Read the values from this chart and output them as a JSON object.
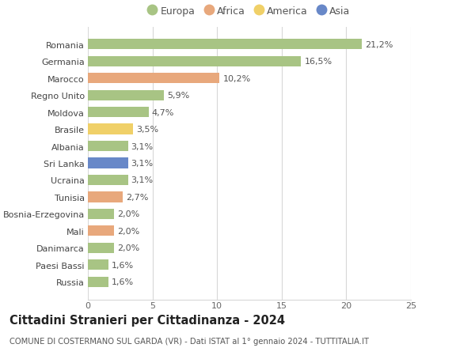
{
  "countries": [
    "Russia",
    "Paesi Bassi",
    "Danimarca",
    "Mali",
    "Bosnia-Erzegovina",
    "Tunisia",
    "Ucraina",
    "Sri Lanka",
    "Albania",
    "Brasile",
    "Moldova",
    "Regno Unito",
    "Marocco",
    "Germania",
    "Romania"
  ],
  "values": [
    1.6,
    1.6,
    2.0,
    2.0,
    2.0,
    2.7,
    3.1,
    3.1,
    3.1,
    3.5,
    4.7,
    5.9,
    10.2,
    16.5,
    21.2
  ],
  "labels": [
    "1,6%",
    "1,6%",
    "2,0%",
    "2,0%",
    "2,0%",
    "2,7%",
    "3,1%",
    "3,1%",
    "3,1%",
    "3,5%",
    "4,7%",
    "5,9%",
    "10,2%",
    "16,5%",
    "21,2%"
  ],
  "continents": [
    "Europa",
    "Europa",
    "Europa",
    "Africa",
    "Europa",
    "Africa",
    "Europa",
    "Asia",
    "Europa",
    "America",
    "Europa",
    "Europa",
    "Africa",
    "Europa",
    "Europa"
  ],
  "continent_colors": {
    "Europa": "#a8c484",
    "Africa": "#e8a87c",
    "America": "#f0d068",
    "Asia": "#6888c8"
  },
  "legend_order": [
    "Europa",
    "Africa",
    "America",
    "Asia"
  ],
  "title": "Cittadini Stranieri per Cittadinanza - 2024",
  "subtitle": "COMUNE DI COSTERMANO SUL GARDA (VR) - Dati ISTAT al 1° gennaio 2024 - TUTTITALIA.IT",
  "xlim": [
    0,
    25
  ],
  "xticks": [
    0,
    5,
    10,
    15,
    20,
    25
  ],
  "background_color": "#ffffff",
  "grid_color": "#d8d8d8",
  "bar_height": 0.62,
  "label_fontsize": 8.0,
  "tick_fontsize": 8.0,
  "title_fontsize": 10.5,
  "subtitle_fontsize": 7.2,
  "legend_fontsize": 9.0
}
